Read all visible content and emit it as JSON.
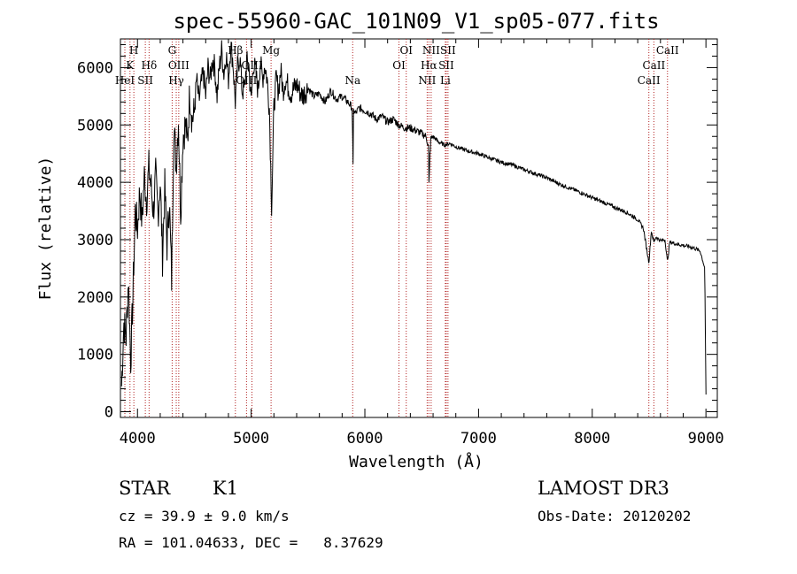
{
  "chart_data": {
    "type": "line",
    "title": "spec-55960-GAC_101N09_V1_sp05-077.fits",
    "xlabel": "Wavelength (Å)",
    "ylabel": "Flux (relative)",
    "xlim": [
      3850,
      9100
    ],
    "ylim": [
      -100,
      6500
    ],
    "xticks": [
      4000,
      5000,
      6000,
      7000,
      8000,
      9000
    ],
    "yticks": [
      0,
      1000,
      2000,
      3000,
      4000,
      5000,
      6000
    ],
    "series": [
      {
        "name": "spectrum",
        "x": [
          3860,
          3880,
          3900,
          3920,
          3940,
          3960,
          3980,
          4000,
          4020,
          4040,
          4060,
          4080,
          4100,
          4120,
          4140,
          4160,
          4180,
          4200,
          4220,
          4240,
          4260,
          4280,
          4300,
          4320,
          4340,
          4360,
          4380,
          4400,
          4420,
          4440,
          4460,
          4480,
          4500,
          4520,
          4540,
          4560,
          4580,
          4600,
          4620,
          4640,
          4660,
          4680,
          4700,
          4720,
          4740,
          4760,
          4780,
          4800,
          4820,
          4840,
          4860,
          4880,
          4900,
          4920,
          4940,
          4960,
          4980,
          5000,
          5020,
          5040,
          5060,
          5080,
          5100,
          5120,
          5140,
          5160,
          5180,
          5200,
          5220,
          5240,
          5260,
          5280,
          5300,
          5350,
          5400,
          5450,
          5500,
          5550,
          5600,
          5650,
          5700,
          5750,
          5800,
          5850,
          5890,
          5895,
          5900,
          5920,
          5950,
          6000,
          6050,
          6100,
          6150,
          6200,
          6250,
          6300,
          6350,
          6400,
          6450,
          6500,
          6540,
          6560,
          6565,
          6570,
          6580,
          6600,
          6650,
          6700,
          6750,
          6800,
          6900,
          7000,
          7100,
          7200,
          7300,
          7400,
          7500,
          7600,
          7700,
          7800,
          7900,
          8000,
          8100,
          8200,
          8300,
          8400,
          8450,
          8498,
          8520,
          8542,
          8560,
          8600,
          8640,
          8662,
          8680,
          8700,
          8750,
          8800,
          8850,
          8900,
          8950,
          8990,
          9000
        ],
        "values": [
          450,
          1550,
          1300,
          2350,
          900,
          2000,
          3500,
          3200,
          3850,
          3300,
          4100,
          3700,
          4250,
          3900,
          3500,
          4100,
          3450,
          4000,
          2700,
          3900,
          2900,
          3700,
          2300,
          5000,
          4300,
          5100,
          3500,
          4800,
          5000,
          4700,
          5600,
          5100,
          5200,
          5800,
          5400,
          5700,
          5900,
          5500,
          6000,
          5800,
          6150,
          6000,
          5500,
          6000,
          6300,
          5900,
          6250,
          5800,
          6400,
          6100,
          5400,
          6000,
          6200,
          5600,
          5600,
          6100,
          6000,
          5400,
          6100,
          5900,
          5600,
          6100,
          5800,
          6050,
          5800,
          5300,
          3600,
          5300,
          5800,
          5600,
          5950,
          5600,
          5800,
          5550,
          5700,
          5500,
          5650,
          5500,
          5550,
          5400,
          5600,
          5450,
          5500,
          5400,
          5300,
          4000,
          5250,
          5200,
          5300,
          5250,
          5200,
          5100,
          5150,
          5050,
          5100,
          5000,
          4950,
          4950,
          4900,
          4850,
          4800,
          4600,
          3800,
          4400,
          4750,
          4800,
          4700,
          4650,
          4680,
          4620,
          4550,
          4500,
          4420,
          4350,
          4300,
          4220,
          4150,
          4080,
          3980,
          3900,
          3820,
          3730,
          3650,
          3560,
          3480,
          3350,
          3200,
          2600,
          3150,
          2950,
          3050,
          2980,
          3000,
          2600,
          2950,
          2950,
          2920,
          2900,
          2880,
          2850,
          2800,
          2500,
          300
        ]
      }
    ],
    "lines": [
      {
        "label": "HeI",
        "x": 3889,
        "row": 2
      },
      {
        "label": "K",
        "x": 3934,
        "row": 1
      },
      {
        "label": "H",
        "x": 3968,
        "row": 0
      },
      {
        "label": "SII",
        "x": 4069,
        "row": 2
      },
      {
        "label": "Hδ",
        "x": 4102,
        "row": 1
      },
      {
        "label": "G",
        "x": 4305,
        "row": 0
      },
      {
        "label": "Hγ",
        "x": 4341,
        "row": 2
      },
      {
        "label": "OIII",
        "x": 4363,
        "row": 1
      },
      {
        "label": "Hβ",
        "x": 4861,
        "row": 0
      },
      {
        "label": "OIII",
        "x": 4959,
        "row": 2
      },
      {
        "label": "OIII",
        "x": 5007,
        "row": 1
      },
      {
        "label": "Mg",
        "x": 5175,
        "row": 0
      },
      {
        "label": "Na",
        "x": 5893,
        "row": 2
      },
      {
        "label": "OI",
        "x": 6300,
        "row": 1
      },
      {
        "label": "OI",
        "x": 6364,
        "row": 0
      },
      {
        "label": "NII",
        "x": 6548,
        "row": 2
      },
      {
        "label": "Hα",
        "x": 6563,
        "row": 1
      },
      {
        "label": "NII",
        "x": 6583,
        "row": 0
      },
      {
        "label": "Li",
        "x": 6708,
        "row": 2
      },
      {
        "label": "SII",
        "x": 6716,
        "row": 1
      },
      {
        "label": "SII",
        "x": 6731,
        "row": 0
      },
      {
        "label": "CaII",
        "x": 8498,
        "row": 2
      },
      {
        "label": "CaII",
        "x": 8542,
        "row": 1
      },
      {
        "label": "CaII",
        "x": 8662,
        "row": 0
      }
    ]
  },
  "info": {
    "object_class": "STAR",
    "subclass": "K1",
    "survey": "LAMOST DR3",
    "cz": "cz = 39.9 ± 9.0 km/s",
    "obs_date": "Obs-Date: 20120202",
    "coords": "RA = 101.04633, DEC =   8.37629"
  }
}
